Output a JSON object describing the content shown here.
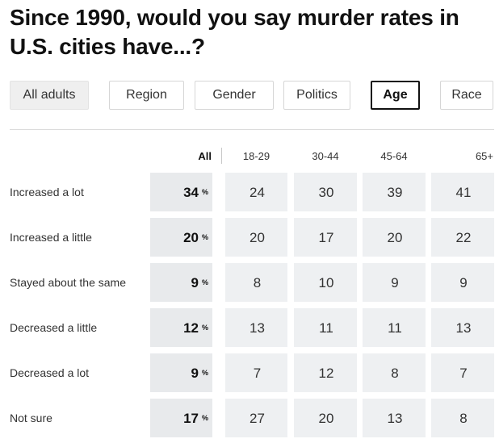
{
  "title": "Since 1990, would you say murder rates in U.S. cities have...?",
  "tabs": [
    {
      "label": "All adults",
      "state": "muted"
    },
    {
      "label": "Region",
      "state": "normal"
    },
    {
      "label": "Gender",
      "state": "normal"
    },
    {
      "label": "Politics",
      "state": "normal"
    },
    {
      "label": "Age",
      "state": "active"
    },
    {
      "label": "Race",
      "state": "normal"
    }
  ],
  "colors": {
    "cell_all": "#e8eaec",
    "cell": "#eef0f2",
    "text": "#333333"
  },
  "chart_data": {
    "type": "table",
    "title": "Since 1990, would you say murder rates in U.S. cities have...?",
    "all_header": "All",
    "percent_symbol": "%",
    "columns": [
      "18-29",
      "30-44",
      "45-64",
      "65+"
    ],
    "rows": [
      {
        "label": "Increased a lot",
        "all": 34,
        "values": [
          24,
          30,
          39,
          41
        ]
      },
      {
        "label": "Increased a little",
        "all": 20,
        "values": [
          20,
          17,
          20,
          22
        ]
      },
      {
        "label": "Stayed about the same",
        "all": 9,
        "values": [
          8,
          10,
          9,
          9
        ]
      },
      {
        "label": "Decreased a little",
        "all": 12,
        "values": [
          13,
          11,
          11,
          13
        ]
      },
      {
        "label": "Decreased a lot",
        "all": 9,
        "values": [
          7,
          12,
          8,
          7
        ]
      },
      {
        "label": "Not sure",
        "all": 17,
        "values": [
          27,
          20,
          13,
          8
        ]
      }
    ]
  }
}
